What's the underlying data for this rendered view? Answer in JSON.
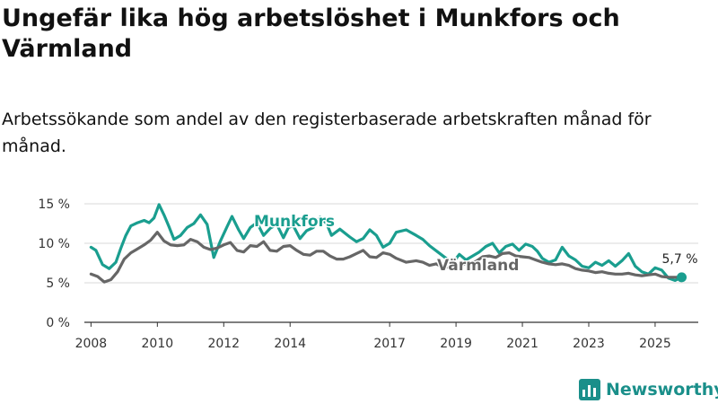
{
  "chart_data": {
    "type": "line",
    "title": "Ungefär lika hög arbetslöshet i Munkfors och Värmland",
    "subtitle": "Arbetssökande som andel av den registerbaserade arbetskraften månad för månad.",
    "xlabel": "",
    "ylabel": "",
    "xlim": [
      2007.8,
      2026.3
    ],
    "ylim": [
      0,
      15
    ],
    "y_ticks": [
      0,
      5,
      10,
      15
    ],
    "y_tick_labels": [
      "0 %",
      "5 %",
      "10 %",
      "15 %"
    ],
    "x_ticks": [
      2008,
      2010,
      2012,
      2014,
      2017,
      2019,
      2021,
      2023,
      2025
    ],
    "x_tick_labels": [
      "2008",
      "2010",
      "2012",
      "2014",
      "2017",
      "2019",
      "2021",
      "2023",
      "2025"
    ],
    "end_value_label": "5,7 %",
    "series": [
      {
        "name": "Munkfors",
        "color": "#1a9e8f",
        "x": [
          2008.0,
          2008.15,
          2008.35,
          2008.55,
          2008.75,
          2008.9,
          2009.05,
          2009.2,
          2009.4,
          2009.6,
          2009.75,
          2009.9,
          2010.05,
          2010.2,
          2010.35,
          2010.5,
          2010.7,
          2010.9,
          2011.1,
          2011.3,
          2011.5,
          2011.6,
          2011.7,
          2011.9,
          2012.1,
          2012.25,
          2012.45,
          2012.6,
          2012.8,
          2013.0,
          2013.2,
          2013.4,
          2013.6,
          2013.8,
          2013.95,
          2014.1,
          2014.3,
          2014.5,
          2014.7,
          2014.9,
          2015.1,
          2015.25,
          2015.5,
          2015.8,
          2016.0,
          2016.2,
          2016.4,
          2016.6,
          2016.8,
          2017.0,
          2017.2,
          2017.5,
          2017.8,
          2018.0,
          2018.2,
          2018.45,
          2018.7,
          2018.9,
          2019.1,
          2019.3,
          2019.5,
          2019.7,
          2019.9,
          2020.1,
          2020.3,
          2020.5,
          2020.7,
          2020.9,
          2021.1,
          2021.3,
          2021.45,
          2021.6,
          2021.8,
          2022.0,
          2022.2,
          2022.4,
          2022.6,
          2022.8,
          2023.0,
          2023.2,
          2023.4,
          2023.6,
          2023.8,
          2024.0,
          2024.2,
          2024.4,
          2024.6,
          2024.8,
          2025.0,
          2025.2,
          2025.4,
          2025.6,
          2025.8
        ],
        "values": [
          9.5,
          9.1,
          7.3,
          6.8,
          7.6,
          9.4,
          11.0,
          12.2,
          12.6,
          12.9,
          12.6,
          13.2,
          14.9,
          13.6,
          12.1,
          10.5,
          11.0,
          12.0,
          12.5,
          13.6,
          12.4,
          10.3,
          8.2,
          10.3,
          12.1,
          13.4,
          11.7,
          10.6,
          12.0,
          12.6,
          11.0,
          11.9,
          12.4,
          10.7,
          12.0,
          12.2,
          10.6,
          11.6,
          12.0,
          13.3,
          12.5,
          11.0,
          11.8,
          10.8,
          10.2,
          10.6,
          11.7,
          11.0,
          9.5,
          10.0,
          11.4,
          11.7,
          11.0,
          10.5,
          9.7,
          8.9,
          8.1,
          7.5,
          8.6,
          7.9,
          8.4,
          8.9,
          9.6,
          10.0,
          8.8,
          9.6,
          9.9,
          9.1,
          9.9,
          9.6,
          9.0,
          8.1,
          7.6,
          7.9,
          9.5,
          8.4,
          7.9,
          7.1,
          6.9,
          7.6,
          7.2,
          7.8,
          7.1,
          7.8,
          8.7,
          7.1,
          6.4,
          6.1,
          6.9,
          6.6,
          5.6,
          5.3,
          5.7
        ]
      },
      {
        "name": "Värmland",
        "color": "#666666",
        "x": [
          2008.0,
          2008.2,
          2008.4,
          2008.6,
          2008.8,
          2009.0,
          2009.2,
          2009.4,
          2009.6,
          2009.8,
          2010.0,
          2010.2,
          2010.4,
          2010.6,
          2010.8,
          2011.0,
          2011.2,
          2011.4,
          2011.6,
          2011.8,
          2012.0,
          2012.2,
          2012.4,
          2012.6,
          2012.8,
          2013.0,
          2013.2,
          2013.4,
          2013.6,
          2013.8,
          2014.0,
          2014.2,
          2014.4,
          2014.6,
          2014.8,
          2015.0,
          2015.2,
          2015.4,
          2015.6,
          2015.8,
          2016.0,
          2016.2,
          2016.4,
          2016.6,
          2016.8,
          2017.0,
          2017.2,
          2017.5,
          2017.8,
          2018.0,
          2018.2,
          2018.4,
          2018.6,
          2018.8,
          2019.0,
          2019.2,
          2019.4,
          2019.6,
          2019.8,
          2020.0,
          2020.2,
          2020.4,
          2020.6,
          2020.8,
          2021.0,
          2021.2,
          2021.4,
          2021.6,
          2021.8,
          2022.0,
          2022.2,
          2022.4,
          2022.6,
          2022.8,
          2023.0,
          2023.2,
          2023.4,
          2023.6,
          2023.8,
          2024.0,
          2024.2,
          2024.4,
          2024.6,
          2024.8,
          2025.0,
          2025.2,
          2025.4,
          2025.6,
          2025.8
        ],
        "values": [
          6.1,
          5.8,
          5.1,
          5.4,
          6.4,
          8.0,
          8.8,
          9.3,
          9.8,
          10.4,
          11.4,
          10.3,
          9.8,
          9.7,
          9.8,
          10.5,
          10.2,
          9.5,
          9.2,
          9.4,
          9.8,
          10.1,
          9.1,
          8.9,
          9.7,
          9.6,
          10.2,
          9.1,
          9.0,
          9.6,
          9.7,
          9.1,
          8.6,
          8.5,
          9.0,
          9.0,
          8.4,
          8.0,
          8.0,
          8.3,
          8.7,
          9.1,
          8.3,
          8.2,
          8.8,
          8.6,
          8.1,
          7.6,
          7.8,
          7.6,
          7.2,
          7.4,
          7.0,
          7.0,
          6.9,
          7.3,
          7.5,
          7.7,
          8.3,
          8.4,
          8.2,
          8.7,
          8.8,
          8.4,
          8.3,
          8.2,
          7.9,
          7.6,
          7.4,
          7.3,
          7.4,
          7.2,
          6.8,
          6.6,
          6.5,
          6.3,
          6.4,
          6.2,
          6.1,
          6.1,
          6.2,
          6.0,
          5.9,
          6.0,
          6.1,
          5.8,
          5.7,
          5.7,
          5.7
        ]
      }
    ]
  },
  "brand": {
    "name": "Newsworthy",
    "color": "#1a8f8a"
  }
}
